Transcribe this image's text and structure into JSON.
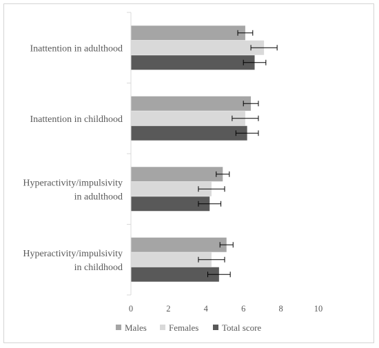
{
  "chart_data": {
    "type": "bar",
    "orientation": "horizontal",
    "categories": [
      [
        "Inattention in adulthood"
      ],
      [
        "Inattention in childhood"
      ],
      [
        "Hyperactivity/impulsivity",
        "in adulthood"
      ],
      [
        "Hyperactivity/impulsivity",
        "in childhood"
      ]
    ],
    "series": [
      {
        "name": "Males",
        "color": "#a5a5a5",
        "values": [
          6.1,
          6.4,
          4.9,
          5.1
        ],
        "errors": [
          0.4,
          0.4,
          0.35,
          0.35
        ]
      },
      {
        "name": "Females",
        "color": "#d9d9d9",
        "values": [
          7.1,
          6.1,
          4.3,
          4.3
        ],
        "errors": [
          0.7,
          0.7,
          0.7,
          0.7
        ]
      },
      {
        "name": "Total score",
        "color": "#595959",
        "values": [
          6.6,
          6.2,
          4.2,
          4.7
        ],
        "errors": [
          0.6,
          0.6,
          0.6,
          0.6
        ]
      }
    ],
    "xlim": [
      0,
      10
    ],
    "xticks": [
      0,
      2,
      4,
      6,
      8,
      10
    ],
    "title": "",
    "xlabel": "",
    "ylabel": "",
    "grid": false,
    "legend": "bottom"
  }
}
